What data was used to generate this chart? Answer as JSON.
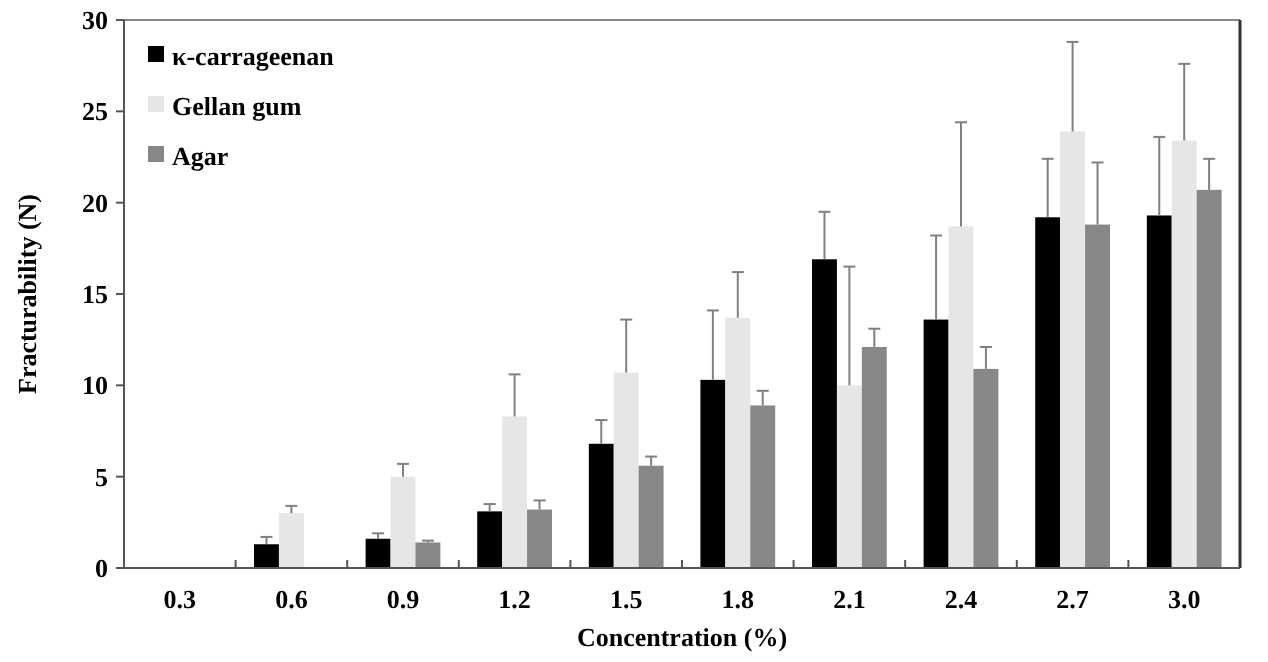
{
  "chart_data": {
    "type": "bar",
    "xlabel": "Concentration (%)",
    "ylabel": "Fracturability (N)",
    "categories": [
      "0.3",
      "0.6",
      "0.9",
      "1.2",
      "1.5",
      "1.8",
      "2.1",
      "2.4",
      "2.7",
      "3.0"
    ],
    "series": [
      {
        "name": "κ-carrageenan",
        "color": "#000000",
        "values": [
          0,
          1.3,
          1.6,
          3.1,
          6.8,
          10.3,
          16.9,
          13.6,
          19.2,
          19.3
        ],
        "errors": [
          null,
          [
            1.3,
            1.7
          ],
          [
            1.6,
            1.9
          ],
          [
            3.1,
            3.5
          ],
          [
            6.8,
            8.1
          ],
          [
            10.3,
            14.1
          ],
          [
            16.9,
            19.5
          ],
          [
            13.6,
            18.2
          ],
          [
            19.2,
            22.4
          ],
          [
            19.3,
            23.6
          ]
        ]
      },
      {
        "name": "Gellan gum",
        "color": "#e6e6e6",
        "values": [
          0,
          3.0,
          5.0,
          8.3,
          10.7,
          13.7,
          10.0,
          18.7,
          23.9,
          23.4
        ],
        "errors": [
          null,
          [
            3.0,
            3.4
          ],
          [
            5.0,
            5.7
          ],
          [
            8.3,
            10.6
          ],
          [
            10.7,
            13.6
          ],
          [
            13.7,
            16.2
          ],
          [
            10.0,
            16.5
          ],
          [
            18.7,
            24.4
          ],
          [
            23.9,
            28.8
          ],
          [
            23.4,
            27.6
          ]
        ]
      },
      {
        "name": "Agar",
        "color": "#878787",
        "values": [
          0,
          0,
          1.4,
          3.2,
          5.6,
          8.9,
          12.1,
          10.9,
          18.8,
          20.7
        ],
        "errors": [
          null,
          null,
          [
            1.4,
            1.5
          ],
          [
            3.2,
            3.7
          ],
          [
            5.6,
            6.1
          ],
          [
            8.9,
            9.7
          ],
          [
            12.1,
            13.1
          ],
          [
            10.9,
            12.1
          ],
          [
            18.8,
            22.2
          ],
          [
            20.7,
            22.4
          ]
        ]
      }
    ],
    "ylim": [
      0,
      30
    ],
    "yticks": [
      0,
      5,
      10,
      15,
      20,
      25,
      30
    ],
    "grid": false,
    "legend": "top left"
  }
}
